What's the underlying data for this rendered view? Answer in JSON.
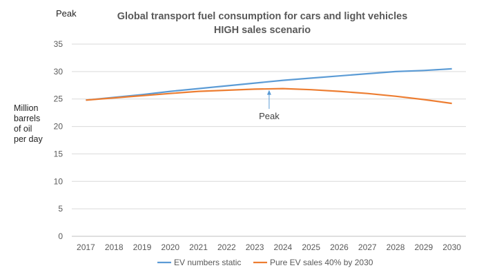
{
  "corner_label": "Peak",
  "chart_data": {
    "type": "line",
    "title_line1": "Global transport fuel consumption for cars and light vehicles",
    "title_line2": "HIGH sales scenario",
    "ylabel_lines": [
      "Million",
      "barrels",
      "of oil",
      "per day"
    ],
    "xlabel": "",
    "categories": [
      "2017",
      "2018",
      "2019",
      "2020",
      "2021",
      "2022",
      "2023",
      "2024",
      "2025",
      "2026",
      "2027",
      "2028",
      "2029",
      "2030"
    ],
    "ylim": [
      0,
      35
    ],
    "yticks": [
      0,
      5,
      10,
      15,
      20,
      25,
      30,
      35
    ],
    "grid": true,
    "series": [
      {
        "name": "EV numbers static",
        "color": "#5B9BD5",
        "values": [
          24.8,
          25.3,
          25.8,
          26.4,
          26.9,
          27.4,
          27.9,
          28.4,
          28.8,
          29.2,
          29.6,
          30.0,
          30.2,
          30.5
        ]
      },
      {
        "name": "Pure EV sales 40% by 2030",
        "color": "#ED7D31",
        "values": [
          24.8,
          25.2,
          25.6,
          26.0,
          26.4,
          26.6,
          26.8,
          26.9,
          26.7,
          26.4,
          26.0,
          25.5,
          24.9,
          24.2
        ]
      }
    ],
    "annotation": {
      "text": "Peak",
      "x": "2024",
      "y": 26.9
    },
    "legend_position": "bottom"
  }
}
